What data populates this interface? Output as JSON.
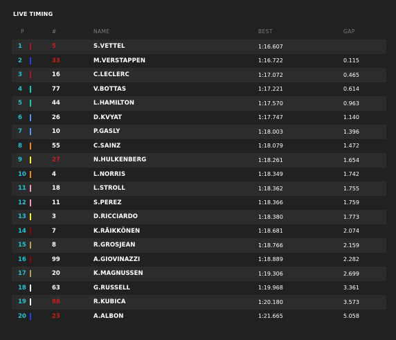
{
  "header": {
    "title": "LIVE TIMING",
    "col_pos": "P",
    "col_num": "#",
    "col_name": "NAME",
    "col_best": "BEST",
    "col_gap": "GAP"
  },
  "colors": {
    "position": "#21c4d3",
    "highlight_number": "#c81e1e",
    "background": "#212121",
    "alt_row": "#2c2c2c"
  },
  "rows": [
    {
      "pos": "1",
      "num": "5",
      "num_red": true,
      "name": "S.VETTEL",
      "best": "1:16.607",
      "gap": "",
      "team_color": "#b81414"
    },
    {
      "pos": "2",
      "num": "33",
      "num_red": true,
      "name": "M.VERSTAPPEN",
      "best": "1:16.722",
      "gap": "0.115",
      "team_color": "#1e41ff"
    },
    {
      "pos": "3",
      "num": "16",
      "num_red": false,
      "name": "C.LECLERC",
      "best": "1:17.072",
      "gap": "0.465",
      "team_color": "#b81414"
    },
    {
      "pos": "4",
      "num": "77",
      "num_red": false,
      "name": "V.BOTTAS",
      "best": "1:17.221",
      "gap": "0.614",
      "team_color": "#00d2be"
    },
    {
      "pos": "5",
      "num": "44",
      "num_red": false,
      "name": "L.HAMILTON",
      "best": "1:17.570",
      "gap": "0.963",
      "team_color": "#00d2be"
    },
    {
      "pos": "6",
      "num": "26",
      "num_red": false,
      "name": "D.KVYAT",
      "best": "1:17.747",
      "gap": "1.140",
      "team_color": "#469bff"
    },
    {
      "pos": "7",
      "num": "10",
      "num_red": false,
      "name": "P.GASLY",
      "best": "1:18.003",
      "gap": "1.396",
      "team_color": "#469bff"
    },
    {
      "pos": "8",
      "num": "55",
      "num_red": false,
      "name": "C.SAINZ",
      "best": "1:18.079",
      "gap": "1.472",
      "team_color": "#ff8700"
    },
    {
      "pos": "9",
      "num": "27",
      "num_red": true,
      "name": "N.HULKENBERG",
      "best": "1:18.261",
      "gap": "1.654",
      "team_color": "#fff500"
    },
    {
      "pos": "10",
      "num": "4",
      "num_red": false,
      "name": "L.NORRIS",
      "best": "1:18.349",
      "gap": "1.742",
      "team_color": "#ff8700"
    },
    {
      "pos": "11",
      "num": "18",
      "num_red": false,
      "name": "L.STROLL",
      "best": "1:18.362",
      "gap": "1.755",
      "team_color": "#f596c8"
    },
    {
      "pos": "12",
      "num": "11",
      "num_red": false,
      "name": "S.PEREZ",
      "best": "1:18.366",
      "gap": "1.759",
      "team_color": "#f596c8"
    },
    {
      "pos": "13",
      "num": "3",
      "num_red": false,
      "name": "D.RICCIARDO",
      "best": "1:18.380",
      "gap": "1.773",
      "team_color": "#fff500"
    },
    {
      "pos": "14",
      "num": "7",
      "num_red": false,
      "name": "K.RÄIKKÖNEN",
      "best": "1:18.681",
      "gap": "2.074",
      "team_color": "#9b0000"
    },
    {
      "pos": "15",
      "num": "8",
      "num_red": false,
      "name": "R.GROSJEAN",
      "best": "1:18.766",
      "gap": "2.159",
      "team_color": "#bd9e57"
    },
    {
      "pos": "16",
      "num": "99",
      "num_red": false,
      "name": "A.GIOVINAZZI",
      "best": "1:18.889",
      "gap": "2.282",
      "team_color": "#9b0000"
    },
    {
      "pos": "17",
      "num": "20",
      "num_red": false,
      "name": "K.MAGNUSSEN",
      "best": "1:19.306",
      "gap": "2.699",
      "team_color": "#bd9e57"
    },
    {
      "pos": "18",
      "num": "63",
      "num_red": false,
      "name": "G.RUSSELL",
      "best": "1:19.968",
      "gap": "3.361",
      "team_color": "#ffffff"
    },
    {
      "pos": "19",
      "num": "88",
      "num_red": true,
      "name": "R.KUBICA",
      "best": "1:20.180",
      "gap": "3.573",
      "team_color": "#ffffff"
    },
    {
      "pos": "20",
      "num": "23",
      "num_red": true,
      "name": "A.ALBON",
      "best": "1:21.665",
      "gap": "5.058",
      "team_color": "#1e41ff"
    }
  ]
}
